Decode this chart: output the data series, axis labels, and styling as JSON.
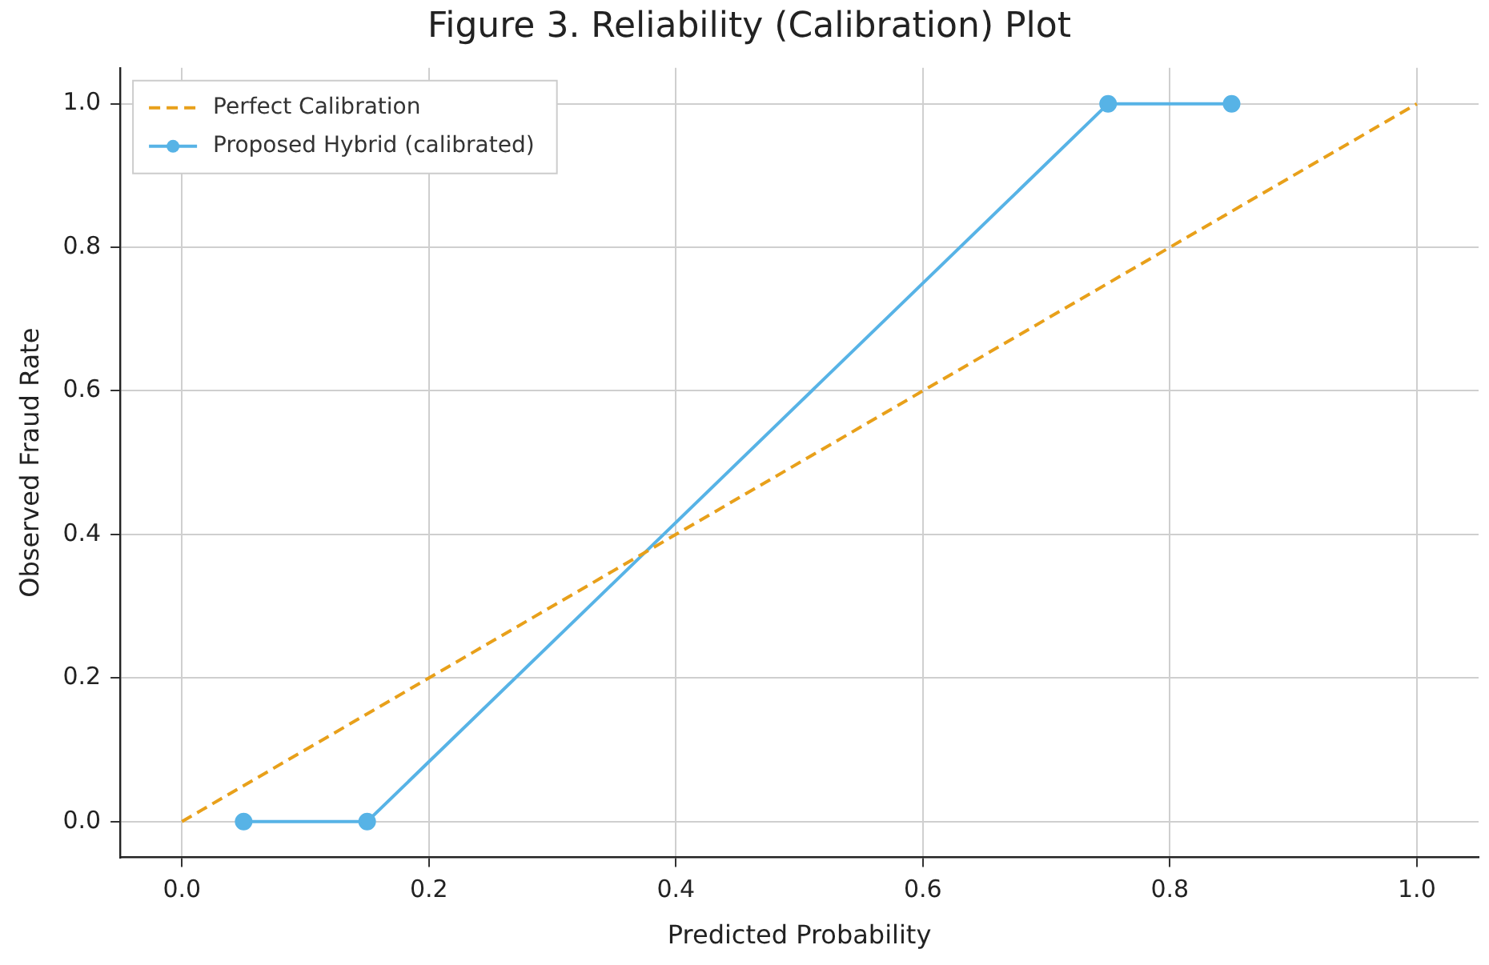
{
  "chart_data": {
    "type": "line",
    "title": "Figure 3. Reliability (Calibration) Plot",
    "xlabel": "Predicted Probability",
    "ylabel": "Observed Fraud Rate",
    "xlim": [
      -0.05,
      1.05
    ],
    "ylim": [
      -0.05,
      1.05
    ],
    "xticks": [
      {
        "value": 0,
        "label": "0.0"
      },
      {
        "value": 0.2,
        "label": "0.2"
      },
      {
        "value": 0.4,
        "label": "0.4"
      },
      {
        "value": 0.6,
        "label": "0.6"
      },
      {
        "value": 0.8,
        "label": "0.8"
      },
      {
        "value": 1,
        "label": "1.0"
      }
    ],
    "yticks": [
      {
        "value": 0,
        "label": "0.0"
      },
      {
        "value": 0.2,
        "label": "0.2"
      },
      {
        "value": 0.4,
        "label": "0.4"
      },
      {
        "value": 0.6,
        "label": "0.6"
      },
      {
        "value": 0.8,
        "label": "0.8"
      },
      {
        "value": 1,
        "label": "1.0"
      }
    ],
    "grid": true,
    "legend": "top left",
    "series": [
      {
        "name": "Perfect Calibration",
        "color": "#e8a01a",
        "x": [
          0,
          1
        ],
        "values": [
          0,
          1
        ],
        "line_style": "dashed",
        "marker": "none"
      },
      {
        "name": "Proposed Hybrid (calibrated)",
        "color": "#57b3e6",
        "x": [
          0.05,
          0.15,
          0.75,
          0.85
        ],
        "values": [
          0,
          0,
          1,
          1
        ],
        "line_style": "solid",
        "marker": "circle"
      }
    ]
  }
}
